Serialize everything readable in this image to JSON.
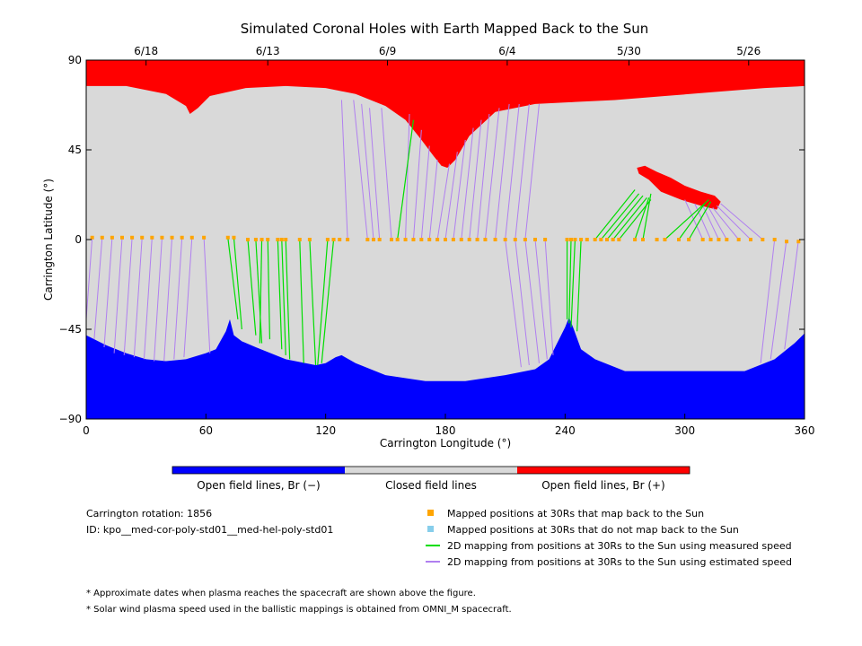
{
  "chart_data": {
    "type": "area",
    "title": "Simulated Coronal Holes with Earth Mapped Back to the Sun",
    "xlabel": "Carrington Longitude (°)",
    "ylabel": "Carrington Latitude (°)",
    "xlim": [
      0,
      360
    ],
    "ylim": [
      -90,
      90
    ],
    "x_ticks": [
      0,
      60,
      120,
      180,
      240,
      300,
      360
    ],
    "y_ticks": [
      -90,
      -45,
      0,
      45,
      90
    ],
    "y_tick_labels": [
      "−90",
      "−45",
      "0",
      "45",
      "90"
    ],
    "top_axis_dates": [
      {
        "label": "6/18",
        "longitude": 30
      },
      {
        "label": "6/13",
        "longitude": 91
      },
      {
        "label": "6/9",
        "longitude": 151
      },
      {
        "label": "6/4",
        "longitude": 211
      },
      {
        "label": "5/30",
        "longitude": 272
      },
      {
        "label": "5/26",
        "longitude": 332
      }
    ],
    "colorbar": [
      {
        "label": "Open field lines, Br (−)",
        "color": "#0000ff"
      },
      {
        "label": "Closed field lines",
        "color": "#d9d9d9"
      },
      {
        "label": "Open field lines, Br (+)",
        "color": "#ff0000"
      }
    ],
    "north_hole_boundary": {
      "longitude": [
        0,
        20,
        40,
        50,
        52,
        56,
        62,
        80,
        100,
        120,
        135,
        150,
        160,
        168,
        174,
        178,
        181,
        185,
        192,
        205,
        225,
        245,
        265,
        290,
        315,
        340,
        360
      ],
      "latitude": [
        77,
        77,
        73,
        67,
        63,
        66,
        72,
        76,
        77,
        76,
        73,
        67,
        60,
        50,
        42,
        37,
        36,
        40,
        52,
        64,
        68,
        69,
        70,
        72,
        74,
        76,
        77
      ]
    },
    "south_hole_boundary": {
      "longitude": [
        0,
        10,
        20,
        30,
        40,
        50,
        60,
        65,
        70,
        72,
        74,
        78,
        85,
        100,
        115,
        120,
        125,
        128,
        135,
        150,
        170,
        190,
        210,
        225,
        232,
        236,
        240,
        242,
        244,
        248,
        255,
        270,
        300,
        330,
        345,
        355,
        360
      ],
      "latitude": [
        -48,
        -53,
        -57,
        -60,
        -61,
        -60,
        -57,
        -55,
        -46,
        -40,
        -48,
        -51,
        -54,
        -60,
        -63,
        -62,
        -59,
        -58,
        -62,
        -68,
        -71,
        -71,
        -68,
        -65,
        -60,
        -52,
        -44,
        -39,
        -44,
        -55,
        -60,
        -66,
        -66,
        -66,
        -60,
        -52,
        -47
      ]
    },
    "positive_low_latitude_patch": {
      "longitude": [
        276,
        280,
        286,
        293,
        300,
        308,
        315,
        318,
        316,
        308,
        298,
        288,
        282,
        277,
        276
      ],
      "latitude": [
        36,
        37,
        34,
        31,
        27,
        24,
        22,
        19,
        15,
        17,
        20,
        24,
        30,
        33,
        36
      ]
    },
    "series": [
      {
        "name": "Mapped positions at 30Rs that map back to the Sun",
        "marker": "square",
        "color": "#ffa500",
        "x": [
          3,
          8,
          13,
          18,
          23,
          28,
          33,
          38,
          43,
          48,
          53,
          59,
          71,
          74,
          81,
          85,
          88,
          91,
          96,
          98,
          100,
          107,
          112,
          121,
          124,
          127,
          131,
          141,
          144,
          147,
          153,
          156,
          160,
          164,
          168,
          172,
          176,
          180,
          184,
          188,
          192,
          196,
          200,
          205,
          210,
          215,
          220,
          225,
          230,
          241,
          243,
          245,
          248,
          251,
          255,
          258,
          261,
          264,
          267,
          275,
          279,
          286,
          290,
          297,
          302,
          309,
          313,
          317,
          321,
          327,
          333,
          339,
          345,
          351,
          357
        ],
        "y": [
          1,
          1,
          1,
          1,
          1,
          1,
          1,
          1,
          1,
          1,
          1,
          1,
          1,
          1,
          0,
          0,
          0,
          0,
          0,
          0,
          0,
          0,
          0,
          0,
          0,
          0,
          0,
          0,
          0,
          0,
          0,
          0,
          0,
          0,
          0,
          0,
          0,
          0,
          0,
          0,
          0,
          0,
          0,
          0,
          0,
          0,
          0,
          0,
          0,
          0,
          0,
          0,
          0,
          0,
          0,
          0,
          0,
          0,
          0,
          0,
          0,
          0,
          0,
          0,
          0,
          0,
          0,
          0,
          0,
          0,
          0,
          0,
          0,
          -1,
          -1
        ]
      },
      {
        "name": "Mapped positions at 30Rs that do not map back to the Sun",
        "marker": "square",
        "color": "#87ceeb",
        "x": [],
        "y": []
      },
      {
        "name": "2D mapping from positions at 30Rs to the Sun using measured speed",
        "type": "segments",
        "color": "#00dd00",
        "segments": [
          [
            71,
            1,
            76,
            -40
          ],
          [
            74,
            1,
            78,
            -45
          ],
          [
            81,
            0,
            85,
            -48
          ],
          [
            85,
            0,
            88,
            -52
          ],
          [
            88,
            0,
            87,
            -52
          ],
          [
            91,
            0,
            92,
            -50
          ],
          [
            96,
            0,
            98,
            -55
          ],
          [
            98,
            0,
            100,
            -58
          ],
          [
            100,
            0,
            102,
            -60
          ],
          [
            107,
            0,
            109,
            -62
          ],
          [
            112,
            0,
            115,
            -63
          ],
          [
            121,
            0,
            116,
            -63
          ],
          [
            124,
            0,
            118,
            -62
          ],
          [
            156,
            0,
            164,
            60
          ],
          [
            241,
            0,
            241,
            -40
          ],
          [
            243,
            0,
            242,
            -42
          ],
          [
            245,
            0,
            243,
            -44
          ],
          [
            248,
            0,
            246,
            -46
          ],
          [
            255,
            0,
            275,
            25
          ],
          [
            258,
            0,
            277,
            23
          ],
          [
            261,
            0,
            279,
            22
          ],
          [
            264,
            0,
            281,
            21
          ],
          [
            267,
            0,
            283,
            20
          ],
          [
            275,
            0,
            282,
            21
          ],
          [
            279,
            0,
            283,
            23
          ],
          [
            290,
            0,
            312,
            20
          ],
          [
            297,
            0,
            310,
            18
          ],
          [
            302,
            0,
            313,
            19
          ]
        ]
      },
      {
        "name": "2D mapping from positions at 30Rs to the Sun using estimated speed",
        "type": "segments",
        "color": "#b07ff0",
        "segments": [
          [
            3,
            1,
            0,
            -40
          ],
          [
            8,
            1,
            4,
            -50
          ],
          [
            13,
            1,
            9,
            -54
          ],
          [
            18,
            1,
            14,
            -57
          ],
          [
            23,
            1,
            19,
            -58
          ],
          [
            28,
            1,
            24,
            -59
          ],
          [
            33,
            1,
            29,
            -60
          ],
          [
            38,
            1,
            34,
            -61
          ],
          [
            43,
            1,
            39,
            -61
          ],
          [
            48,
            1,
            44,
            -60
          ],
          [
            53,
            1,
            49,
            -59
          ],
          [
            59,
            1,
            62,
            -57
          ],
          [
            131,
            0,
            128,
            70
          ],
          [
            141,
            0,
            134,
            70
          ],
          [
            144,
            0,
            138,
            68
          ],
          [
            147,
            0,
            142,
            66
          ],
          [
            153,
            0,
            148,
            66
          ],
          [
            160,
            0,
            162,
            63
          ],
          [
            164,
            0,
            168,
            55
          ],
          [
            168,
            0,
            172,
            47
          ],
          [
            172,
            0,
            176,
            40
          ],
          [
            176,
            0,
            182,
            38
          ],
          [
            180,
            0,
            186,
            44
          ],
          [
            184,
            0,
            190,
            50
          ],
          [
            188,
            0,
            194,
            56
          ],
          [
            192,
            0,
            198,
            60
          ],
          [
            196,
            0,
            202,
            63
          ],
          [
            200,
            0,
            207,
            66
          ],
          [
            205,
            0,
            212,
            68
          ],
          [
            210,
            0,
            217,
            68
          ],
          [
            215,
            0,
            222,
            68
          ],
          [
            220,
            0,
            227,
            68
          ],
          [
            210,
            0,
            218,
            -64
          ],
          [
            215,
            0,
            222,
            -63
          ],
          [
            220,
            0,
            227,
            -62
          ],
          [
            225,
            0,
            231,
            -60
          ],
          [
            230,
            0,
            234,
            -58
          ],
          [
            309,
            0,
            300,
            20
          ],
          [
            313,
            0,
            305,
            18
          ],
          [
            317,
            0,
            309,
            17
          ],
          [
            321,
            0,
            312,
            16
          ],
          [
            327,
            0,
            314,
            16
          ],
          [
            333,
            0,
            316,
            17
          ],
          [
            339,
            0,
            318,
            18
          ],
          [
            345,
            0,
            338,
            -62
          ],
          [
            351,
            0,
            343,
            -60
          ],
          [
            357,
            0,
            350,
            -55
          ]
        ]
      }
    ]
  },
  "legend_info": {
    "carrington_rotation": "Carrington rotation: 1856",
    "model_id": "ID: kpo__med-cor-poly-std01__med-hel-poly-std01"
  },
  "footnotes": [
    "* Approximate dates when plasma reaches the spacecraft are shown above the figure.",
    "* Solar wind plasma speed used in the ballistic mappings is obtained from OMNI_M spacecraft."
  ]
}
